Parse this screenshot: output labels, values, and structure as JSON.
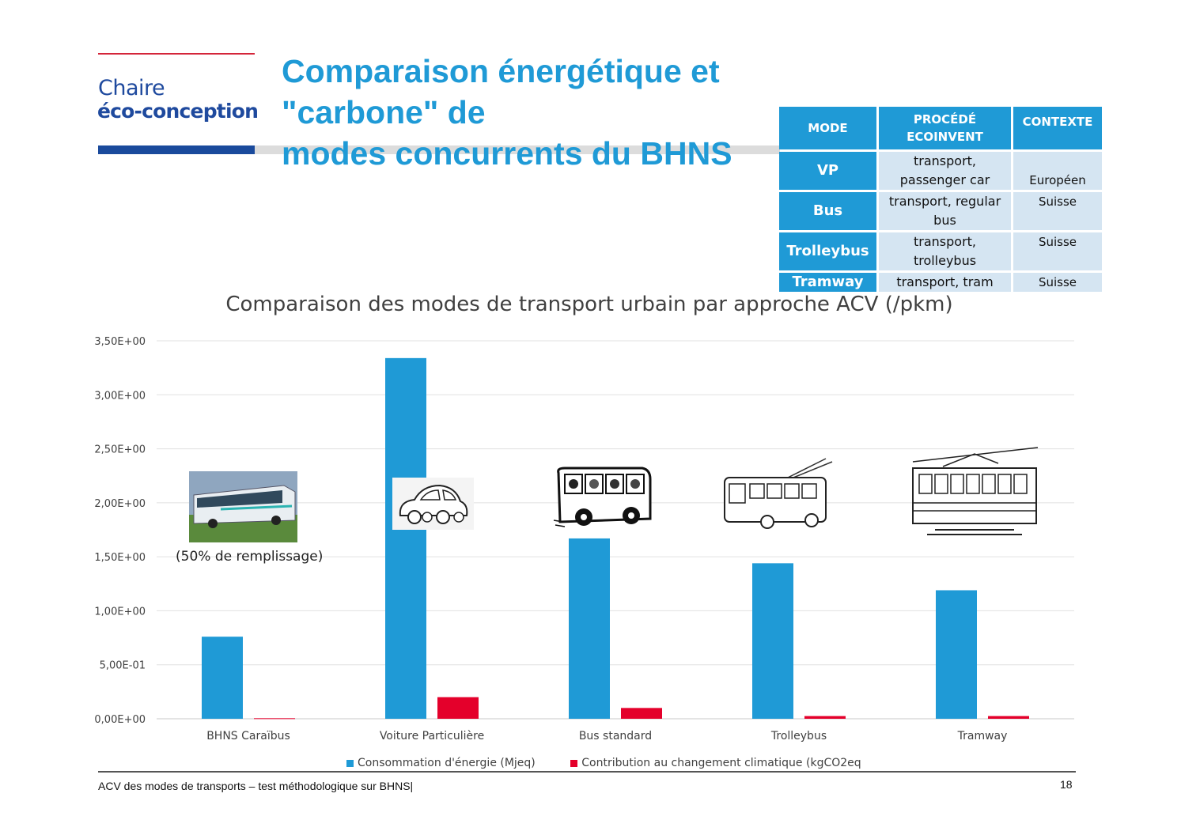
{
  "logo": {
    "line1": "Chaire",
    "line2": "éco-conception"
  },
  "title": {
    "line1": "Comparaison énergétique et \"carbone\" de",
    "line2": "modes concurrents du BHNS"
  },
  "table": {
    "headers": [
      "MODE",
      "PROCÉDÉ ECOINVENT",
      "CONTEXTE"
    ],
    "rows": [
      {
        "mode": "VP",
        "procede": "transport, passenger car",
        "contexte": "Européen"
      },
      {
        "mode": "Bus",
        "procede": "transport, regular bus",
        "contexte": "Suisse"
      },
      {
        "mode": "Trolleybus",
        "procede": "transport, trolleybus",
        "contexte": "Suisse"
      },
      {
        "mode": "Tramway",
        "procede": "transport, tram",
        "contexte": "Suisse"
      }
    ]
  },
  "fill_note": "(50% de remplissage)",
  "chart_data": {
    "type": "bar",
    "title": "Comparaison des modes de transport urbain par approche ACV (/pkm)",
    "categories": [
      "BHNS Caraïbus",
      "Voiture Particulière",
      "Bus standard",
      "Trolleybus",
      "Tramway"
    ],
    "series": [
      {
        "name": "Consommation d'énergie (Mjeq)",
        "color": "#1f9ad6",
        "values": [
          0.76,
          3.34,
          1.67,
          1.44,
          1.19
        ]
      },
      {
        "name": "Contribution au changement climatique (kgCO2eq",
        "color": "#e4002b",
        "values": [
          0.005,
          0.2,
          0.1,
          0.025,
          0.025
        ]
      }
    ],
    "ylim": [
      0,
      3.5
    ],
    "yticks": [
      "0,00E+00",
      "5,00E-01",
      "1,00E+00",
      "1,50E+00",
      "2,00E+00",
      "2,50E+00",
      "3,00E+00",
      "3,50E+00"
    ],
    "grid": true,
    "legend": "bottom"
  },
  "icons": [
    "bhns-bus-photo",
    "car-icon",
    "bus-icon",
    "trolleybus-icon",
    "tramway-icon"
  ],
  "footer": {
    "text": "ACV des modes de transports – test méthodologique sur BHNS|",
    "page": "18"
  }
}
